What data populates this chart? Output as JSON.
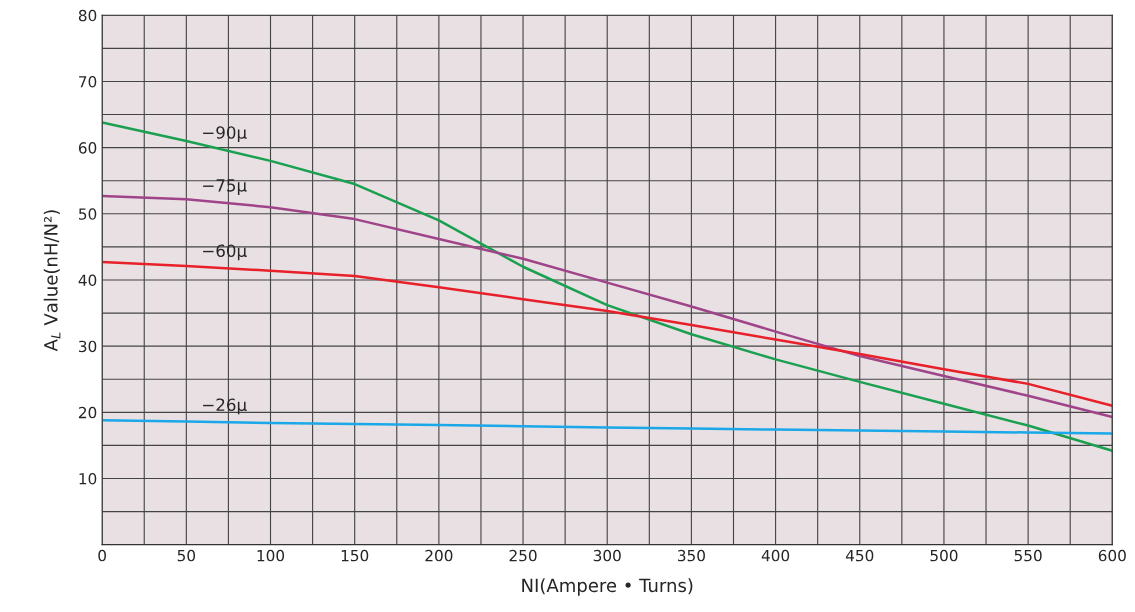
{
  "chart_data": {
    "type": "line",
    "xlabel": "NI(Ampere • Turns)",
    "ylabel": "A$_{L}$ Value(nH/N²)",
    "xlim": [
      0,
      600
    ],
    "ylim": [
      0,
      80
    ],
    "xticks": [
      0,
      {
        "value": 25,
        "label": null
      },
      50,
      {
        "value": 75,
        "label": null
      },
      100,
      {
        "value": 125,
        "label": null
      },
      150,
      {
        "value": 175,
        "label": null
      },
      200,
      {
        "value": 225,
        "label": null
      },
      250,
      {
        "value": 275,
        "label": null
      },
      300,
      {
        "value": 325,
        "label": null
      },
      350,
      {
        "value": 375,
        "label": null
      },
      400,
      {
        "value": 425,
        "label": null
      },
      450,
      {
        "value": 475,
        "label": null
      },
      500,
      {
        "value": 525,
        "label": null
      },
      550,
      {
        "value": 575,
        "label": null
      },
      600
    ],
    "yticks": [
      {
        "value": 0,
        "label": null
      },
      {
        "value": 5,
        "label": null
      },
      10,
      {
        "value": 15,
        "label": null
      },
      20,
      {
        "value": 25,
        "label": null
      },
      30,
      {
        "value": 35,
        "label": null
      },
      40,
      {
        "value": 45,
        "label": null
      },
      50,
      {
        "value": 55,
        "label": null
      },
      60,
      {
        "value": 65,
        "label": null
      },
      70,
      {
        "value": 75,
        "label": null
      },
      80
    ],
    "grid": true,
    "legend": false,
    "marker": "none",
    "line_style": "solid",
    "x": [
      0,
      50,
      100,
      150,
      200,
      250,
      300,
      350,
      400,
      450,
      500,
      550,
      600
    ],
    "series": [
      {
        "name": "−90μ",
        "color": "#1aa050",
        "values": [
          63.8,
          61,
          58,
          54.5,
          49,
          42,
          36.2,
          31.8,
          28,
          24.6,
          21.3,
          18,
          14.2
        ]
      },
      {
        "name": "−75μ",
        "color": "#a0448a",
        "values": [
          52.7,
          52.2,
          51,
          49.2,
          46.2,
          43.2,
          39.6,
          36,
          32.2,
          28.5,
          25.5,
          22.5,
          19.3
        ]
      },
      {
        "name": "−60μ",
        "color": "#e8202a",
        "values": [
          42.7,
          42.1,
          41.4,
          40.6,
          38.9,
          37.1,
          35.3,
          33.2,
          31,
          28.8,
          26.5,
          24.3,
          21
        ]
      },
      {
        "name": "−26μ",
        "color": "#1aa8e8",
        "values": [
          18.8,
          18.6,
          18.4,
          18.25,
          18.1,
          17.9,
          17.7,
          17.55,
          17.4,
          17.25,
          17.1,
          16.95,
          16.8
        ]
      }
    ]
  }
}
